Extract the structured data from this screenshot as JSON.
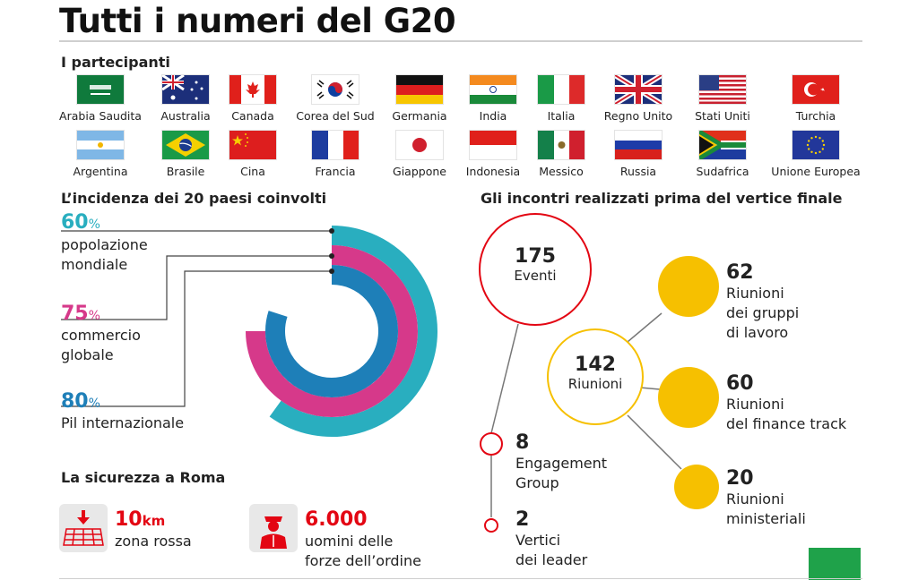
{
  "title": "Tutti i numeri del G20",
  "participants": {
    "heading": "I partecipanti",
    "row1": [
      "Arabia Saudita",
      "Australia",
      "Canada",
      "Corea del Sud",
      "Germania",
      "India",
      "Italia",
      "Regno Unito",
      "Stati Uniti",
      "Turchia"
    ],
    "row2": [
      "Argentina",
      "Brasile",
      "Cina",
      "Francia",
      "Giappone",
      "Indonesia",
      "Messico",
      "Russia",
      "Sudafrica",
      "Unione Europea"
    ]
  },
  "incidence": {
    "heading": "L’incidenza dei 20 paesi coinvolti",
    "items": [
      {
        "value": "60",
        "unit": "%",
        "label1": "popolazione",
        "label2": "mondiale",
        "color": "#29aebf",
        "fraction": 0.6
      },
      {
        "value": "75",
        "unit": "%",
        "label1": "commercio",
        "label2": "globale",
        "color": "#d6398a",
        "fraction": 0.75
      },
      {
        "value": "80",
        "unit": "%",
        "label1": "Pil internazionale",
        "label2": "",
        "color": "#1e7fb8",
        "fraction": 0.8
      }
    ]
  },
  "security": {
    "heading": "La sicurezza a Roma",
    "zone_value": "10",
    "zone_unit": "km",
    "zone_label": "zona rossa",
    "forces_value": "6.000",
    "forces_label1": "uomini delle",
    "forces_label2": "forze dell’ordine"
  },
  "meetings": {
    "heading": "Gli incontri realizzati prima del vertice finale",
    "events_value": "175",
    "events_label": "Eventi",
    "meetings_value": "142",
    "meetings_label": "Riunioni",
    "working_value": "62",
    "working_label1": "Riunioni",
    "working_label2": "dei gruppi",
    "working_label3": "di lavoro",
    "finance_value": "60",
    "finance_label1": "Riunioni",
    "finance_label2": "del finance track",
    "ministerial_value": "20",
    "ministerial_label1": "Riunioni",
    "ministerial_label2": "ministeriali",
    "engagement_value": "8",
    "engagement_label1": "Engagement",
    "engagement_label2": "Group",
    "summits_value": "2",
    "summits_label1": "Vertici",
    "summits_label2": "dei leader"
  },
  "colors": {
    "red": "#e30613",
    "yellow": "#f6c000",
    "teal": "#29aebf",
    "magenta": "#d6398a",
    "blue": "#1e7fb8",
    "green": "#1fa24a"
  }
}
